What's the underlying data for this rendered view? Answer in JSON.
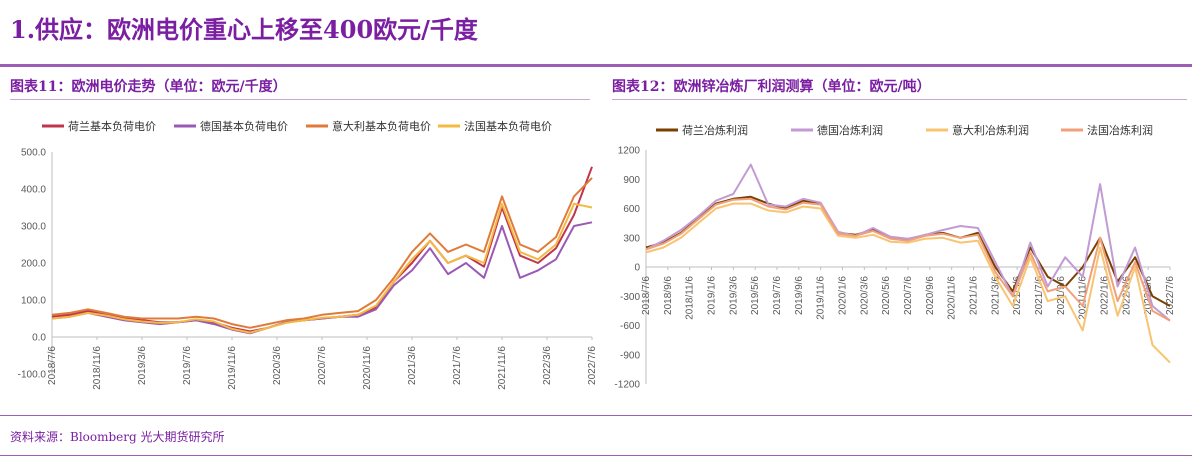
{
  "header": {
    "title": "1.供应：欧洲电价重心上移至400欧元/千度"
  },
  "footer": {
    "source": "资料来源：Bloomberg 光大期货研究所"
  },
  "colors": {
    "brand": "#7B1FA2",
    "rule": "#9C5FB5"
  },
  "chart_data": [
    {
      "label": "图表11：欧洲电价走势（单位：欧元/千度）",
      "type": "line",
      "ylim": [
        -100,
        500
      ],
      "yticks": [
        "500.0",
        "400.0",
        "300.0",
        "200.0",
        "100.0",
        "0.0",
        "-100.0"
      ],
      "ytick_values": [
        500,
        400,
        300,
        200,
        100,
        0,
        -100
      ],
      "xticks": [
        "2018/7/6",
        "2018/11/6",
        "2019/3/6",
        "2019/7/6",
        "2019/11/6",
        "2020/3/6",
        "2020/7/6",
        "2020/11/6",
        "2021/3/6",
        "2021/7/6",
        "2021/11/6",
        "2022/3/6",
        "2022/7/6"
      ],
      "xtick_labels": [
        "2018/7/6",
        "2018/11/6",
        "2019/3/6",
        "2019/7/6",
        "2019/11/6",
        "2020/3/6",
        "2020/7/6",
        "2020/11/6",
        "2021/3/6",
        "2021/7/6",
        "2021/11/6",
        "2022/3/6",
        "2022/7/6"
      ],
      "x": [
        "2018/7",
        "2018/9",
        "2018/11",
        "2019/1",
        "2019/3",
        "2019/5",
        "2019/7",
        "2019/9",
        "2019/11",
        "2020/1",
        "2020/3",
        "2020/5",
        "2020/7",
        "2020/9",
        "2020/11",
        "2021/1",
        "2021/3",
        "2021/5",
        "2021/7",
        "2021/9",
        "2021/10",
        "2021/11",
        "2021/12",
        "2022/1",
        "2022/2",
        "2022/3",
        "2022/4",
        "2022/5",
        "2022/6",
        "2022/7",
        "2022/8"
      ],
      "series": [
        {
          "name": "荷兰基本负荷电价",
          "color": "#C0344D",
          "values": [
            55,
            60,
            70,
            60,
            50,
            45,
            40,
            40,
            45,
            40,
            25,
            15,
            25,
            40,
            45,
            50,
            55,
            60,
            80,
            150,
            200,
            260,
            200,
            220,
            190,
            350,
            220,
            200,
            240,
            330,
            460
          ]
        },
        {
          "name": "德国基本负荷电价",
          "color": "#9B59B6",
          "values": [
            50,
            55,
            65,
            55,
            45,
            40,
            35,
            40,
            45,
            35,
            20,
            10,
            25,
            40,
            45,
            50,
            55,
            55,
            75,
            140,
            180,
            240,
            170,
            200,
            160,
            300,
            160,
            180,
            210,
            300,
            310
          ]
        },
        {
          "name": "意大利基本负荷电价",
          "color": "#E07A3A",
          "values": [
            60,
            65,
            75,
            65,
            55,
            50,
            50,
            50,
            55,
            50,
            35,
            25,
            35,
            45,
            50,
            60,
            65,
            70,
            100,
            160,
            230,
            280,
            230,
            250,
            230,
            380,
            250,
            230,
            270,
            380,
            430
          ]
        },
        {
          "name": "法国基本负荷电价",
          "color": "#F4B942",
          "values": [
            50,
            55,
            65,
            58,
            48,
            42,
            38,
            40,
            48,
            42,
            22,
            12,
            25,
            38,
            45,
            52,
            55,
            60,
            85,
            150,
            210,
            260,
            200,
            220,
            200,
            360,
            230,
            210,
            250,
            360,
            350
          ]
        }
      ]
    },
    {
      "label": "图表12：欧洲锌冶炼厂利润测算（单位：欧元/吨）",
      "type": "line",
      "ylim": [
        -1200,
        1200
      ],
      "yticks": [
        "1200",
        "900",
        "600",
        "300",
        "0",
        "-300",
        "-600",
        "-900",
        "-1200"
      ],
      "ytick_values": [
        1200,
        900,
        600,
        300,
        0,
        -300,
        -600,
        -900,
        -1200
      ],
      "xticks": [
        "2018/7/6",
        "2018/9/6",
        "2018/11/6",
        "2019/1/6",
        "2019/3/6",
        "2019/5/6",
        "2019/7/6",
        "2019/9/6",
        "2019/11/6",
        "2020/1/6",
        "2020/3/6",
        "2020/5/6",
        "2020/7/6",
        "2020/9/6",
        "2020/11/6",
        "2021/1/6",
        "2021/3/6",
        "2021/5/6",
        "2021/7/6",
        "2021/9/6",
        "2021/11/6",
        "2022/1/6",
        "2022/3/6",
        "2022/5/6",
        "2022/7/6"
      ],
      "xtick_labels": [
        "2018/7/6",
        "2018/9/6",
        "2018/11/6",
        "2019/1/6",
        "2019/3/6",
        "2019/5/6",
        "2019/7/6",
        "2019/9/6",
        "2019/11/6",
        "2020/1/6",
        "2020/3/6",
        "2020/5/6",
        "2020/7/6",
        "2020/9/6",
        "2020/11/6",
        "2021/1/6",
        "2021/3/6",
        "2021/5/6",
        "2021/7/6",
        "2021/9/6",
        "2021/11/6",
        "2022/1/6",
        "2022/3/6",
        "2022/5/6",
        "2022/7/6"
      ],
      "x": [
        "2018/7",
        "2018/9",
        "2018/11",
        "2019/1",
        "2019/3",
        "2019/5",
        "2019/7",
        "2019/9",
        "2019/11",
        "2020/1",
        "2020/3",
        "2020/5",
        "2020/7",
        "2020/9",
        "2020/11",
        "2021/1",
        "2021/3",
        "2021/5",
        "2021/7",
        "2021/9",
        "2021/10",
        "2021/11",
        "2021/12",
        "2022/1",
        "2022/2",
        "2022/3",
        "2022/4",
        "2022/5",
        "2022/6",
        "2022/7",
        "2022/8"
      ],
      "series": [
        {
          "name": "荷兰冶炼利润",
          "color": "#7B3F00",
          "values": [
            200,
            250,
            350,
            500,
            650,
            700,
            720,
            650,
            600,
            680,
            650,
            350,
            330,
            380,
            300,
            280,
            330,
            350,
            300,
            350,
            0,
            -250,
            200,
            -100,
            -200,
            0,
            300,
            -150,
            100,
            -300,
            -400
          ]
        },
        {
          "name": "德国冶炼利润",
          "color": "#C39BD3",
          "values": [
            180,
            270,
            380,
            520,
            680,
            750,
            1050,
            640,
            620,
            700,
            660,
            360,
            320,
            400,
            310,
            290,
            330,
            380,
            420,
            400,
            50,
            -300,
            250,
            -200,
            100,
            -100,
            850,
            -200,
            200,
            -400,
            -550
          ]
        },
        {
          "name": "意大利冶炼利润",
          "color": "#F8C471",
          "values": [
            150,
            200,
            300,
            450,
            600,
            650,
            650,
            580,
            560,
            620,
            600,
            320,
            300,
            330,
            260,
            250,
            290,
            300,
            250,
            270,
            -100,
            -400,
            100,
            -350,
            -300,
            -650,
            200,
            -500,
            0,
            -800,
            -980
          ]
        },
        {
          "name": "法国冶炼利润",
          "color": "#F0A07A",
          "values": [
            180,
            240,
            340,
            490,
            640,
            690,
            700,
            620,
            590,
            660,
            640,
            340,
            320,
            370,
            290,
            270,
            320,
            340,
            300,
            330,
            -50,
            -300,
            150,
            -250,
            -200,
            -400,
            300,
            -350,
            50,
            -450,
            -550
          ]
        }
      ]
    }
  ]
}
